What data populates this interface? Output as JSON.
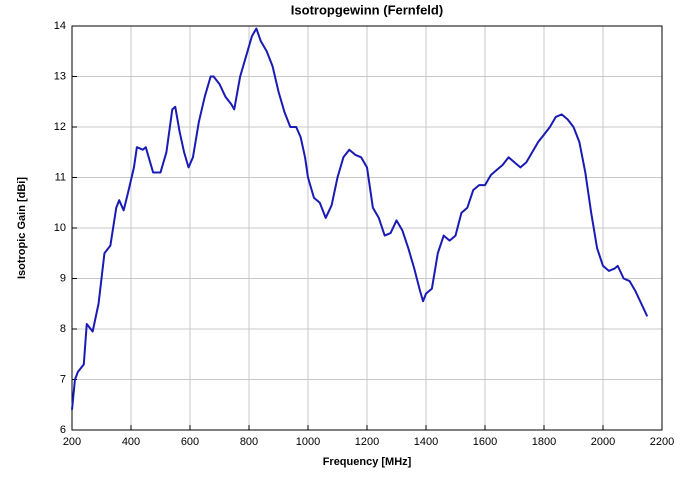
{
  "chart_data": {
    "type": "line",
    "title": "Isotropgewinn (Fernfeld)",
    "x_label": "Frequency [MHz]",
    "y_label": "Isotropic Gain [dBi]",
    "x": [
      200,
      210,
      220,
      240,
      250,
      270,
      290,
      300,
      310,
      330,
      350,
      360,
      375,
      390,
      410,
      420,
      440,
      450,
      460,
      475,
      500,
      520,
      540,
      550,
      565,
      580,
      595,
      610,
      630,
      650,
      670,
      680,
      700,
      720,
      740,
      750,
      770,
      790,
      810,
      825,
      840,
      860,
      880,
      900,
      920,
      940,
      960,
      975,
      990,
      1000,
      1020,
      1040,
      1060,
      1080,
      1100,
      1120,
      1140,
      1160,
      1180,
      1200,
      1220,
      1240,
      1260,
      1280,
      1300,
      1320,
      1340,
      1360,
      1380,
      1390,
      1400,
      1420,
      1440,
      1460,
      1480,
      1500,
      1520,
      1540,
      1560,
      1580,
      1600,
      1620,
      1640,
      1660,
      1680,
      1700,
      1720,
      1740,
      1760,
      1780,
      1800,
      1820,
      1840,
      1860,
      1880,
      1900,
      1920,
      1940,
      1960,
      1980,
      2000,
      2020,
      2040,
      2050,
      2070,
      2090,
      2110,
      2130,
      2150
    ],
    "values": [
      6.4,
      7.0,
      7.15,
      7.3,
      8.1,
      7.95,
      8.5,
      9.0,
      9.5,
      9.65,
      10.4,
      10.55,
      10.35,
      10.7,
      11.2,
      11.6,
      11.55,
      11.6,
      11.4,
      11.1,
      11.1,
      11.5,
      12.35,
      12.4,
      11.9,
      11.5,
      11.2,
      11.4,
      12.1,
      12.6,
      13.0,
      13.0,
      12.85,
      12.6,
      12.45,
      12.35,
      13.0,
      13.4,
      13.8,
      13.95,
      13.7,
      13.5,
      13.2,
      12.7,
      12.3,
      12.0,
      12.0,
      11.8,
      11.4,
      11.0,
      10.6,
      10.5,
      10.2,
      10.45,
      11.0,
      11.4,
      11.55,
      11.45,
      11.4,
      11.2,
      10.4,
      10.2,
      9.85,
      9.9,
      10.15,
      9.95,
      9.6,
      9.2,
      8.75,
      8.55,
      8.7,
      8.8,
      9.5,
      9.85,
      9.75,
      9.85,
      10.3,
      10.4,
      10.75,
      10.85,
      10.85,
      11.05,
      11.15,
      11.25,
      11.4,
      11.3,
      11.2,
      11.3,
      11.5,
      11.7,
      11.85,
      12.0,
      12.2,
      12.25,
      12.15,
      12.0,
      11.7,
      11.1,
      10.3,
      9.6,
      9.25,
      9.15,
      9.2,
      9.25,
      9.0,
      8.95,
      8.75,
      8.5,
      8.25
    ],
    "color": "#1a1ab4",
    "xlim": [
      200,
      2200
    ],
    "xticks": [
      200,
      400,
      600,
      800,
      1000,
      1200,
      1400,
      1600,
      1800,
      2000,
      2200
    ],
    "ylim": [
      6,
      14
    ],
    "yticks": [
      6,
      7,
      8,
      9,
      10,
      11,
      12,
      13,
      14
    ],
    "grid": true
  }
}
